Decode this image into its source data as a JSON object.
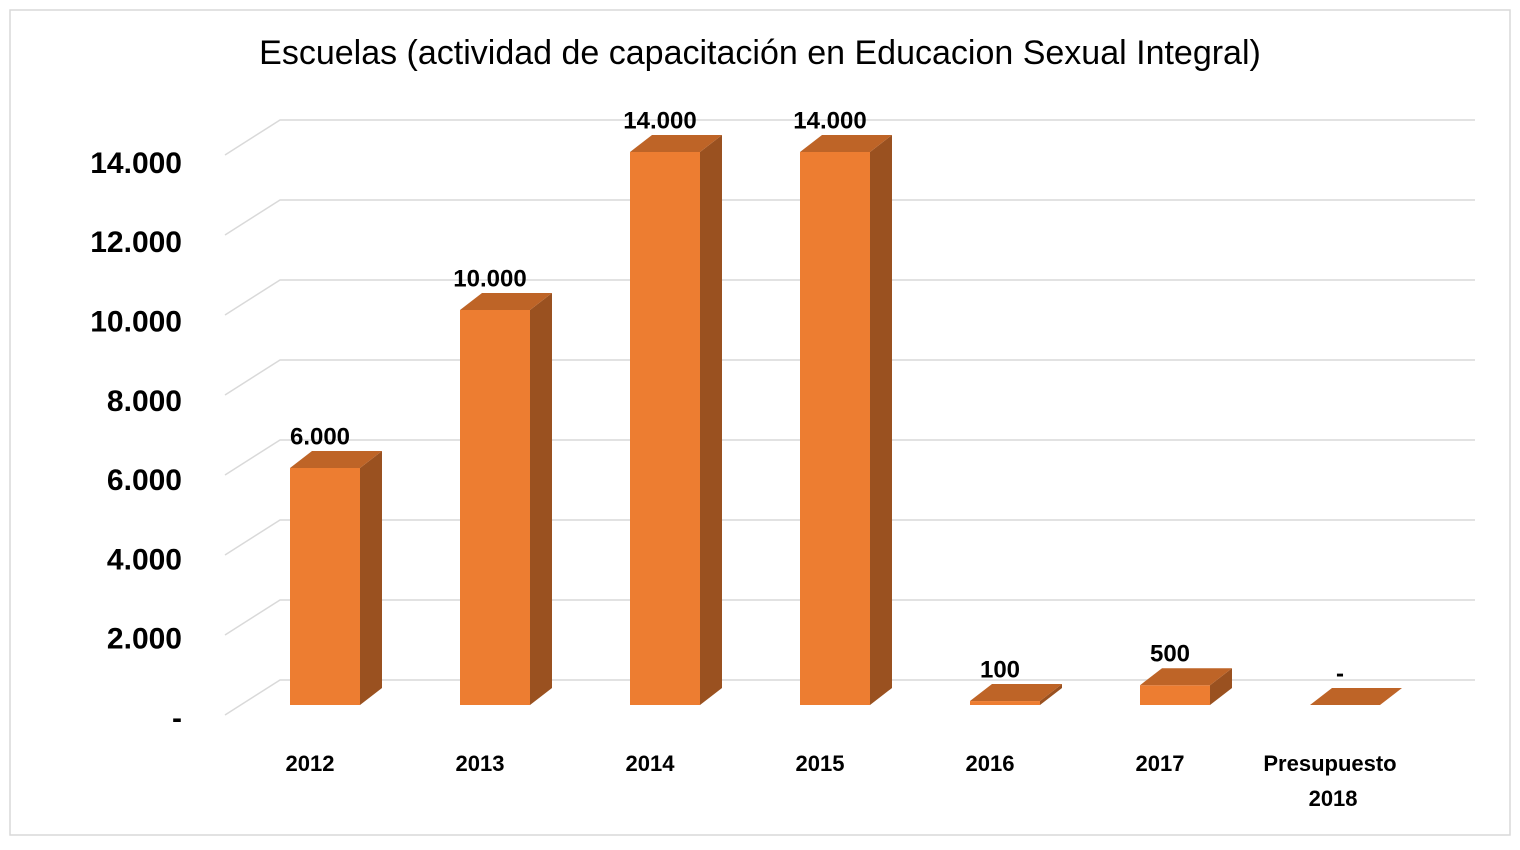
{
  "chart_data": {
    "type": "bar3d",
    "title": "Escuelas (actividad de capacitación en Educacion Sexual Integral)",
    "categories": [
      "2012",
      "2013",
      "2014",
      "2015",
      "2016",
      "2017",
      "Presupuesto 2018"
    ],
    "values": [
      6000,
      10000,
      14000,
      14000,
      100,
      500,
      0
    ],
    "value_labels": [
      "6.000",
      "10.000",
      "14.000",
      "14.000",
      "100",
      "500",
      "-"
    ],
    "color": "#ed7d31",
    "ylim": [
      0,
      14000
    ],
    "yticks": [
      {
        "value": 0,
        "label": "-"
      },
      {
        "value": 2000,
        "label": "2.000"
      },
      {
        "value": 4000,
        "label": "4.000"
      },
      {
        "value": 6000,
        "label": "6.000"
      },
      {
        "value": 8000,
        "label": "8.000"
      },
      {
        "value": 10000,
        "label": "10.000"
      },
      {
        "value": 12000,
        "label": "12.000"
      },
      {
        "value": 14000,
        "label": "14.000"
      }
    ],
    "grid": true
  }
}
